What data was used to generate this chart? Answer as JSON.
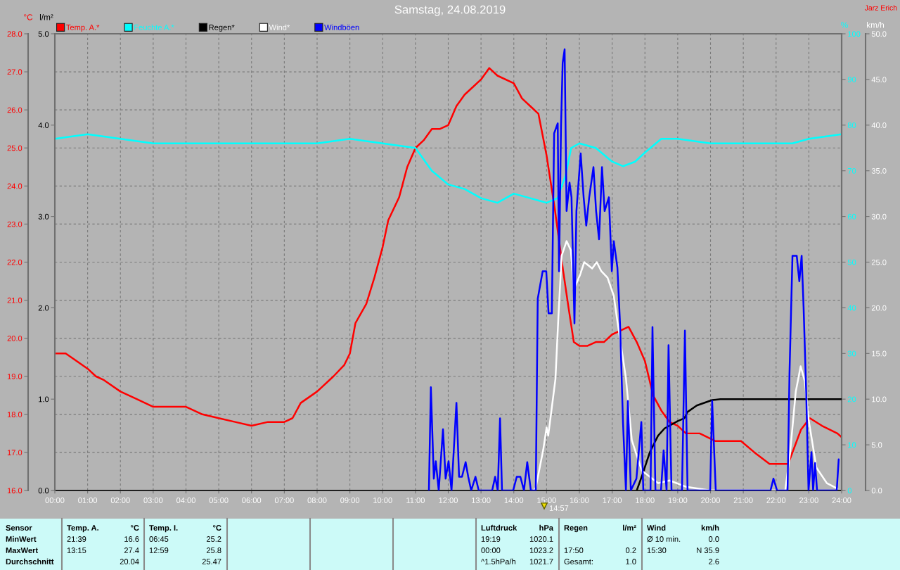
{
  "chart_data": [
    {
      "type": "line",
      "title": "Samstag, 24.08.2019",
      "ylabel": "°C",
      "y2label": "%",
      "xlim": [
        0,
        24
      ],
      "xticks": [
        {
          "value": 0,
          "label": "00:00"
        },
        {
          "value": 1,
          "label": "01:00"
        },
        {
          "value": 2,
          "label": "02:00"
        },
        {
          "value": 3,
          "label": "03:00"
        },
        {
          "value": 4,
          "label": "04:00"
        },
        {
          "value": 5,
          "label": "05:00"
        },
        {
          "value": 6,
          "label": "06:00"
        },
        {
          "value": 7,
          "label": "07:00"
        },
        {
          "value": 8,
          "label": "08:00"
        },
        {
          "value": 9,
          "label": "09:00"
        },
        {
          "value": 10,
          "label": "10:00"
        },
        {
          "value": 11,
          "label": "11:00"
        },
        {
          "value": 12,
          "label": "12:00"
        },
        {
          "value": 13,
          "label": "13:00"
        },
        {
          "value": 14,
          "label": "14:00"
        },
        {
          "value": 15,
          "label": "15:00"
        },
        {
          "value": 16,
          "label": "16:00"
        },
        {
          "value": 17,
          "label": "17:00"
        },
        {
          "value": 18,
          "label": "18:00"
        },
        {
          "value": 19,
          "label": "19:00"
        },
        {
          "value": 20,
          "label": "20:00"
        },
        {
          "value": 21,
          "label": "21:00"
        },
        {
          "value": 22,
          "label": "22:00"
        },
        {
          "value": 23,
          "label": "23:00"
        },
        {
          "value": 24,
          "label": "24:00"
        }
      ],
      "ylim": [
        16,
        28
      ],
      "yticks": [
        {
          "value": 16,
          "label": "16.0"
        },
        {
          "value": 17,
          "label": "17.0"
        },
        {
          "value": 18,
          "label": "18.0"
        },
        {
          "value": 19,
          "label": "19.0"
        },
        {
          "value": 20,
          "label": "20.0"
        },
        {
          "value": 21,
          "label": "21.0"
        },
        {
          "value": 22,
          "label": "22.0"
        },
        {
          "value": 23,
          "label": "23.0"
        },
        {
          "value": 24,
          "label": "24.0"
        },
        {
          "value": 25,
          "label": "25.0"
        },
        {
          "value": 26,
          "label": "26.0"
        },
        {
          "value": 27,
          "label": "27.0"
        },
        {
          "value": 28,
          "label": "28.0"
        }
      ],
      "y2lim": [
        0,
        100
      ],
      "y2ticks": [
        0,
        10,
        20,
        30,
        40,
        50,
        60,
        70,
        80,
        90,
        100
      ],
      "grid": true,
      "legend": "top",
      "series": [
        {
          "name": "Temp. A.*",
          "color": "#ff0000",
          "x": [
            0,
            0.33,
            0.5,
            1,
            1.25,
            1.5,
            2,
            2.5,
            3,
            3.5,
            3.75,
            4,
            4.5,
            5,
            5.5,
            6,
            6.5,
            7,
            7.25,
            7.5,
            8,
            8.5,
            8.83,
            9,
            9.17,
            9.5,
            9.75,
            10,
            10.17,
            10.5,
            10.75,
            11,
            11.25,
            11.5,
            11.75,
            12,
            12.25,
            12.5,
            12.75,
            13,
            13.25,
            13.5,
            14,
            14.25,
            14.5,
            14.75,
            15,
            15.25,
            15.5,
            15.67,
            15.83,
            16,
            16.25,
            16.5,
            16.75,
            17,
            17.25,
            17.5,
            17.75,
            18,
            18.25,
            18.5,
            18.75,
            19,
            19.25,
            19.67,
            20.14,
            20.6,
            20.93,
            21.34,
            21.8,
            22.37,
            22.76,
            23.03,
            23.4,
            23.87,
            24
          ],
          "values": [
            19.6,
            19.6,
            19.5,
            19.2,
            19.0,
            18.9,
            18.6,
            18.4,
            18.2,
            18.2,
            18.2,
            18.2,
            18.0,
            17.9,
            17.8,
            17.7,
            17.8,
            17.8,
            17.9,
            18.3,
            18.6,
            19.0,
            19.3,
            19.6,
            20.4,
            20.9,
            21.6,
            22.4,
            23.1,
            23.7,
            24.5,
            25.0,
            25.2,
            25.5,
            25.5,
            25.6,
            26.1,
            26.4,
            26.6,
            26.8,
            27.1,
            26.9,
            26.7,
            26.3,
            26.1,
            25.9,
            24.8,
            23.4,
            21.8,
            20.8,
            19.9,
            19.8,
            19.8,
            19.9,
            19.9,
            20.1,
            20.2,
            20.3,
            19.9,
            19.4,
            18.5,
            18.1,
            17.8,
            17.7,
            17.5,
            17.5,
            17.3,
            17.3,
            17.3,
            17.0,
            16.7,
            16.7,
            17.6,
            17.9,
            17.7,
            17.5,
            17.4
          ]
        },
        {
          "name": "Feuchte A.*",
          "color": "#00ffff",
          "axis": "y2",
          "x": [
            0,
            1,
            2,
            3,
            4,
            6,
            8,
            9,
            10,
            11,
            11.5,
            12,
            12.5,
            13,
            13.5,
            14,
            14.5,
            15,
            15.33,
            15.58,
            15.75,
            16,
            16.5,
            17,
            17.33,
            17.7,
            18,
            18.5,
            19,
            20,
            21,
            22,
            22.5,
            23,
            24
          ],
          "values": [
            77,
            78,
            77,
            76,
            76,
            76,
            76,
            77,
            76,
            75,
            70,
            67,
            66,
            64,
            63,
            65,
            64,
            63,
            64,
            69,
            75,
            76,
            75,
            72,
            71,
            72,
            74,
            77,
            77,
            76,
            76,
            76,
            76,
            77,
            78
          ]
        }
      ],
      "annotations": [
        "Jarz Erich",
        "14:57",
        "Sensor",
        "MinWert",
        "MaxWert",
        "Durchschnitt",
        "Temp. A.",
        "°C",
        "21:39",
        "16.6",
        "13:15",
        "27.4",
        "20.04",
        "Temp. I.",
        "°C",
        "06:45",
        "25.2",
        "12:59",
        "25.8",
        "25.47",
        "Luftdruck",
        "hPa",
        "19:19",
        "1020.1",
        "00:00",
        "1023.2",
        "^1.5hPa/h",
        "1021.7",
        "Regen",
        "l/m²",
        "17:50",
        "0.2",
        "Gesamt:",
        "1.0",
        "Wind",
        "km/h",
        "Ø 10 min.",
        "0.0",
        "15:30",
        "N 35.9",
        "2.6"
      ]
    },
    {
      "type": "line",
      "ylabel": "l/m²",
      "y2label": "km/h",
      "tick_labels": "y",
      "legend": "top",
      "xlim": [
        0,
        24
      ],
      "ylim": [
        0,
        5
      ],
      "yticks": [
        {
          "value": 0,
          "label": "0.0"
        },
        {
          "value": 1,
          "label": "1.0"
        },
        {
          "value": 2,
          "label": "2.0"
        },
        {
          "value": 3,
          "label": "3.0"
        },
        {
          "value": 4,
          "label": "4.0"
        },
        {
          "value": 5,
          "label": "5.0"
        }
      ],
      "y2lim": [
        0,
        50
      ],
      "y2ticks": [
        {
          "value": 0,
          "label": "0.0"
        },
        {
          "value": 5,
          "label": "5.0"
        },
        {
          "value": 10,
          "label": "10.0"
        },
        {
          "value": 15,
          "label": "15.0"
        },
        {
          "value": 20,
          "label": "20.0"
        },
        {
          "value": 25,
          "label": "25.0"
        },
        {
          "value": 30,
          "label": "30.0"
        },
        {
          "value": 35,
          "label": "35.0"
        },
        {
          "value": 40,
          "label": "40.0"
        },
        {
          "value": 45,
          "label": "45.0"
        },
        {
          "value": 50,
          "label": "50.0"
        }
      ],
      "series": [
        {
          "name": "Regen*",
          "color": "#000000",
          "x": [
            17.75,
            17.9,
            18.15,
            18.4,
            18.6,
            19.0,
            19.2,
            19.3,
            19.58,
            20.05,
            20.3,
            24
          ],
          "values": [
            0,
            0.15,
            0.42,
            0.6,
            0.68,
            0.76,
            0.79,
            0.86,
            0.93,
            0.99,
            1.0,
            1.0
          ]
        },
        {
          "name": "Wind*",
          "color": "#ffffff",
          "axis": "y2",
          "x": [
            14.6,
            14.67,
            14.9,
            15.0,
            15.05,
            15.27,
            15.36,
            15.46,
            15.61,
            15.74,
            15.83,
            16.02,
            16.15,
            16.39,
            16.53,
            16.67,
            16.86,
            17.05,
            17.14,
            17.42,
            17.6,
            17.9,
            18.0,
            18.4,
            18.75,
            19.26,
            20.0,
            22.28,
            22.43,
            22.6,
            22.75,
            22.88,
            23.0,
            23.23,
            23.55,
            23.87
          ],
          "values": [
            0,
            0.3,
            4.5,
            6.9,
            6.0,
            12.2,
            19.0,
            25.7,
            27.3,
            26.3,
            22.0,
            23.6,
            25.0,
            24.3,
            25.0,
            24.0,
            23.3,
            21.3,
            19.0,
            12.3,
            5.5,
            2.2,
            1.9,
            0.8,
            1.1,
            0.4,
            0,
            0,
            4.2,
            10.8,
            13.6,
            11.9,
            7.6,
            2.5,
            0.8,
            0.2
          ]
        },
        {
          "name": "Windböen",
          "color": "#0000ff",
          "axis": "y2",
          "x": [
            11.41,
            11.47,
            11.56,
            11.62,
            11.71,
            11.84,
            11.92,
            12.01,
            12.1,
            12.25,
            12.33,
            12.42,
            12.53,
            12.61,
            12.7,
            12.83,
            12.93,
            13.34,
            13.43,
            13.51,
            13.58,
            13.64,
            13.98,
            14.09,
            14.2,
            14.31,
            14.41,
            14.52,
            14.67,
            14.73,
            14.88,
            14.99,
            15.06,
            15.16,
            15.23,
            15.34,
            15.38,
            15.44,
            15.49,
            15.55,
            15.61,
            15.7,
            15.76,
            15.85,
            15.91,
            16.04,
            16.13,
            16.21,
            16.3,
            16.43,
            16.51,
            16.6,
            16.69,
            16.77,
            16.9,
            16.99,
            17.05,
            17.16,
            17.24,
            17.33,
            17.42,
            17.48,
            17.57,
            17.74,
            17.89,
            17.95,
            18.17,
            18.23,
            18.32,
            18.49,
            18.57,
            18.66,
            18.72,
            18.81,
            19.13,
            19.22,
            19.3,
            19.99,
            20.05,
            20.16,
            21.83,
            21.92,
            22.03,
            22.35,
            22.41,
            22.5,
            22.63,
            22.71,
            22.78,
            22.84,
            22.92,
            22.99,
            23.08,
            23.13,
            23.19,
            23.25,
            23.85,
            23.91
          ],
          "values": [
            0,
            11.3,
            1.3,
            3.2,
            0,
            6.7,
            1.3,
            3.2,
            0,
            9.6,
            1.5,
            1.5,
            3.1,
            1.5,
            0,
            1.5,
            0,
            0,
            1.5,
            0,
            7.9,
            0,
            0,
            1.5,
            1.5,
            0,
            3.1,
            0,
            0,
            21.0,
            24.0,
            24.0,
            19.4,
            19.4,
            39.1,
            40.2,
            24.0,
            39.8,
            46.8,
            48.3,
            30.6,
            33.7,
            32.1,
            18.3,
            30.6,
            36.9,
            32.1,
            29.0,
            32.1,
            35.4,
            30.6,
            27.5,
            35.4,
            30.6,
            32.1,
            24.0,
            27.3,
            24.4,
            18.3,
            7.5,
            0,
            9.8,
            0,
            1.3,
            7.5,
            0,
            0,
            17.9,
            0,
            0,
            4.4,
            0,
            15.9,
            0,
            0,
            17.5,
            0,
            0,
            9.8,
            0,
            0,
            1.3,
            0,
            0,
            12.9,
            25.7,
            25.7,
            22.9,
            25.7,
            20.0,
            10.6,
            0,
            4.2,
            0,
            3.0,
            0,
            0,
            3.4
          ]
        }
      ]
    }
  ]
}
